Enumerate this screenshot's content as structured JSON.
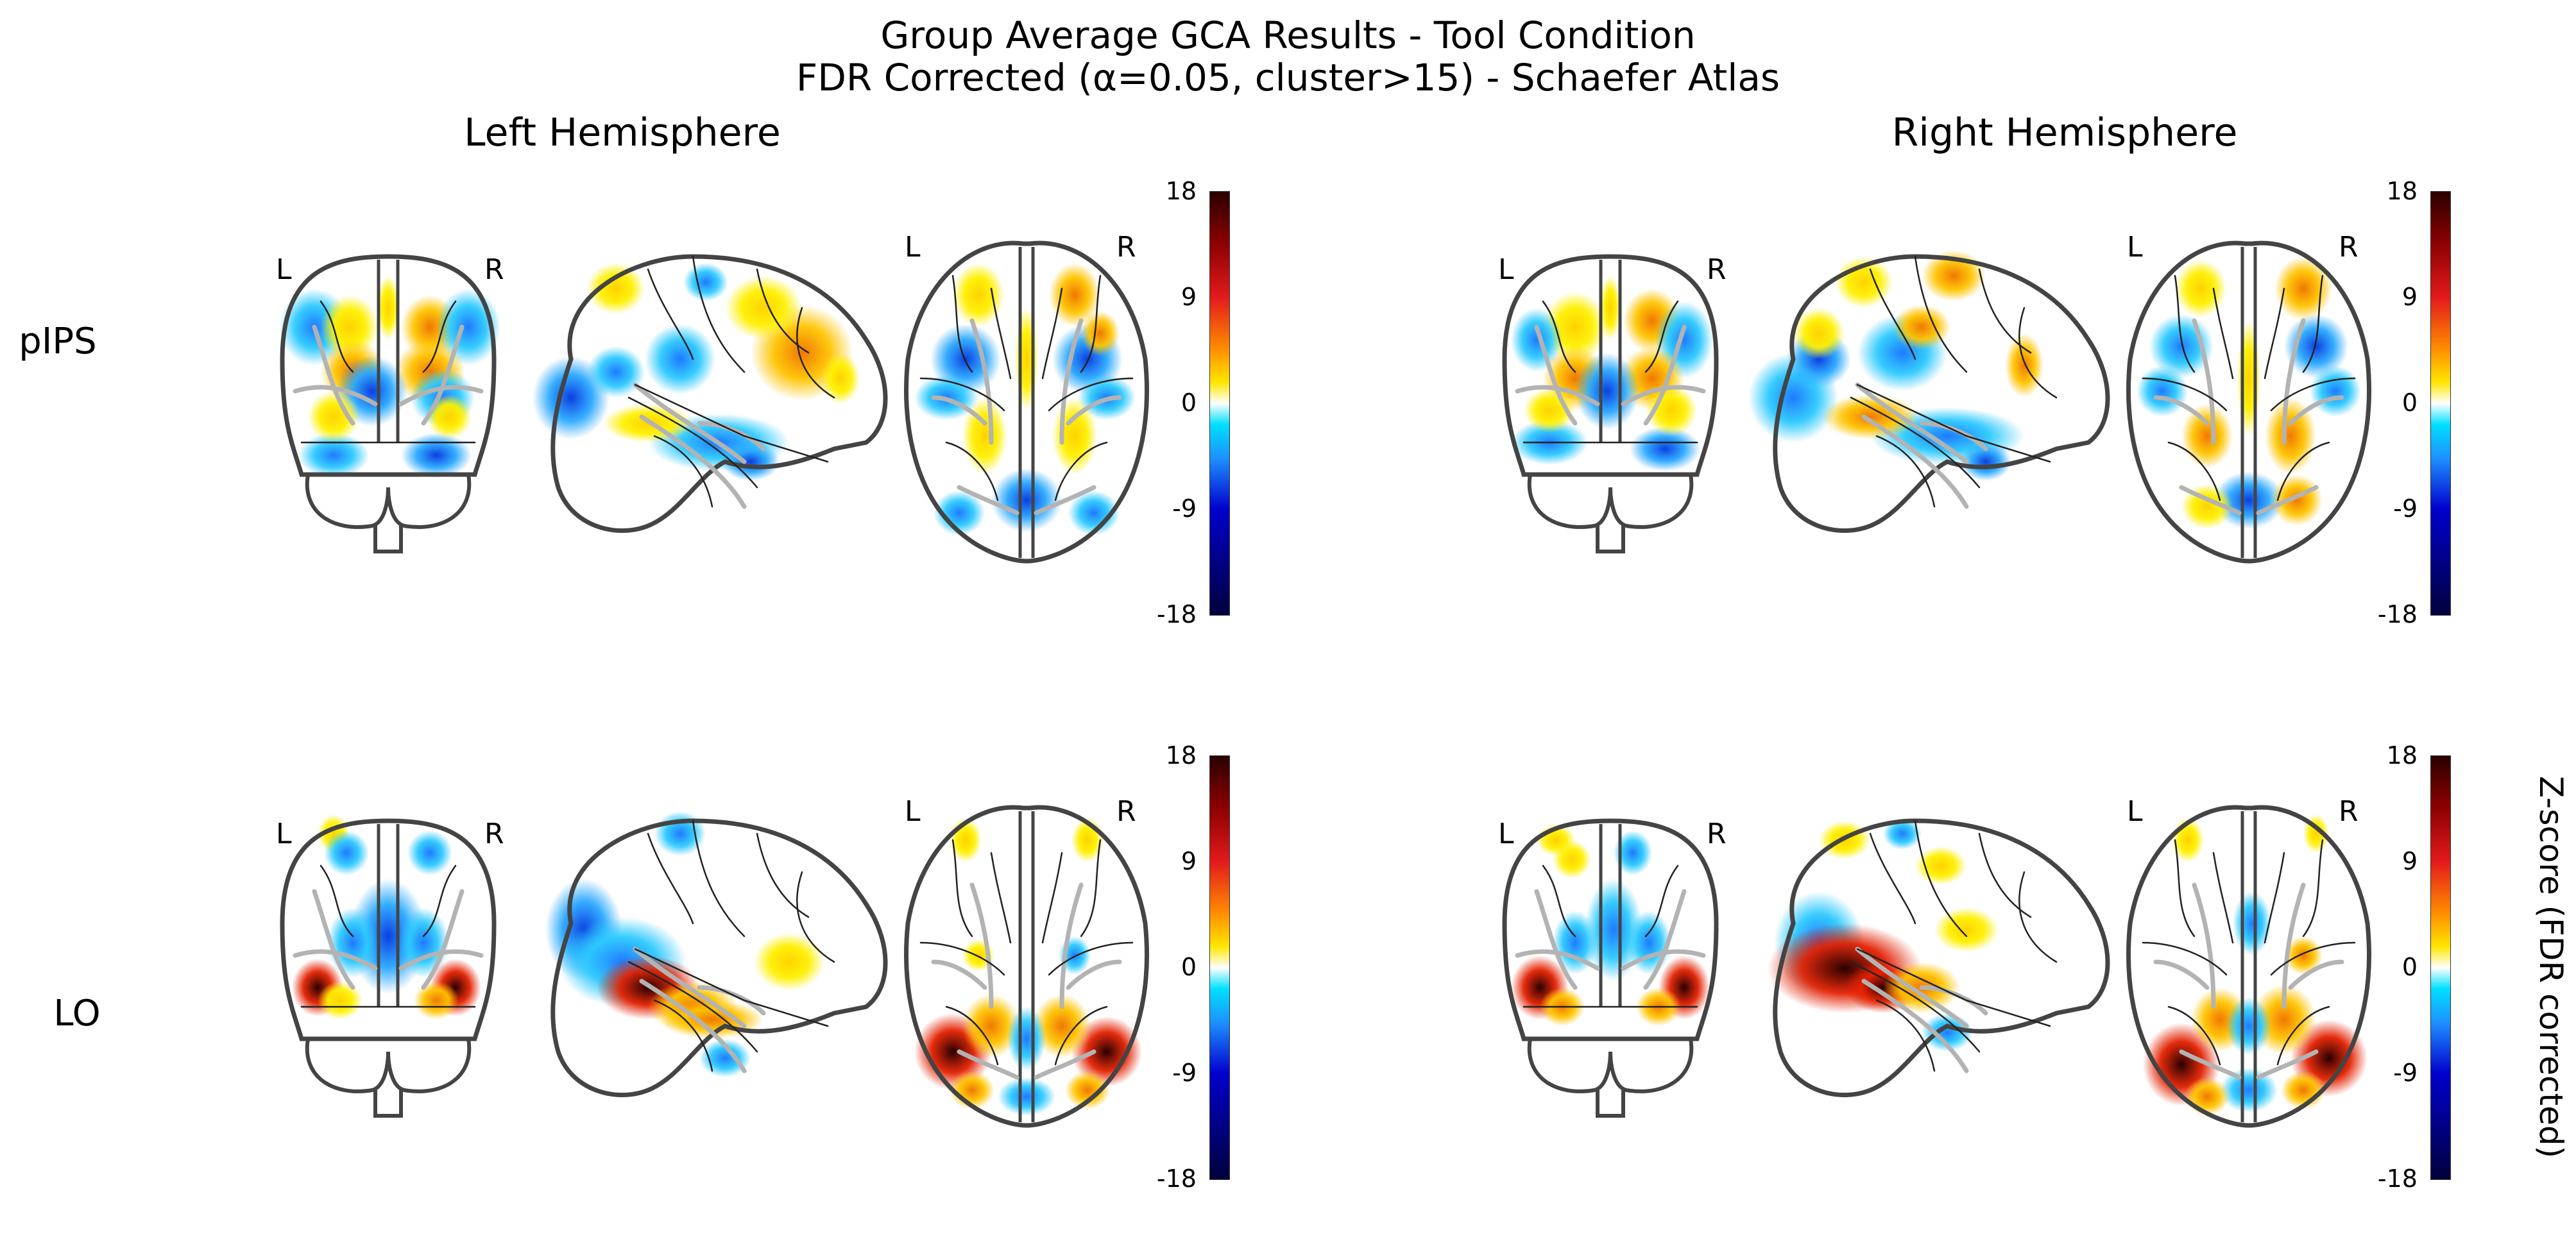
{
  "chart_data": {
    "type": "heatmap",
    "title": "Group Average GCA Results - Tool Condition",
    "subtitle": "FDR Corrected (α=0.05, cluster>15) - Schaefer Atlas",
    "columns": [
      "Left Hemisphere",
      "Right Hemisphere"
    ],
    "rows": [
      "pIPS",
      "LO"
    ],
    "colorbar": {
      "ticks": [
        "18",
        "9",
        "0",
        "-9",
        "-18"
      ],
      "range": [
        -18,
        18
      ],
      "colormap": "cold_hot",
      "label": "Z-score (FDR corrected)"
    },
    "orientation_labels": {
      "left": "L",
      "right": "R"
    }
  }
}
